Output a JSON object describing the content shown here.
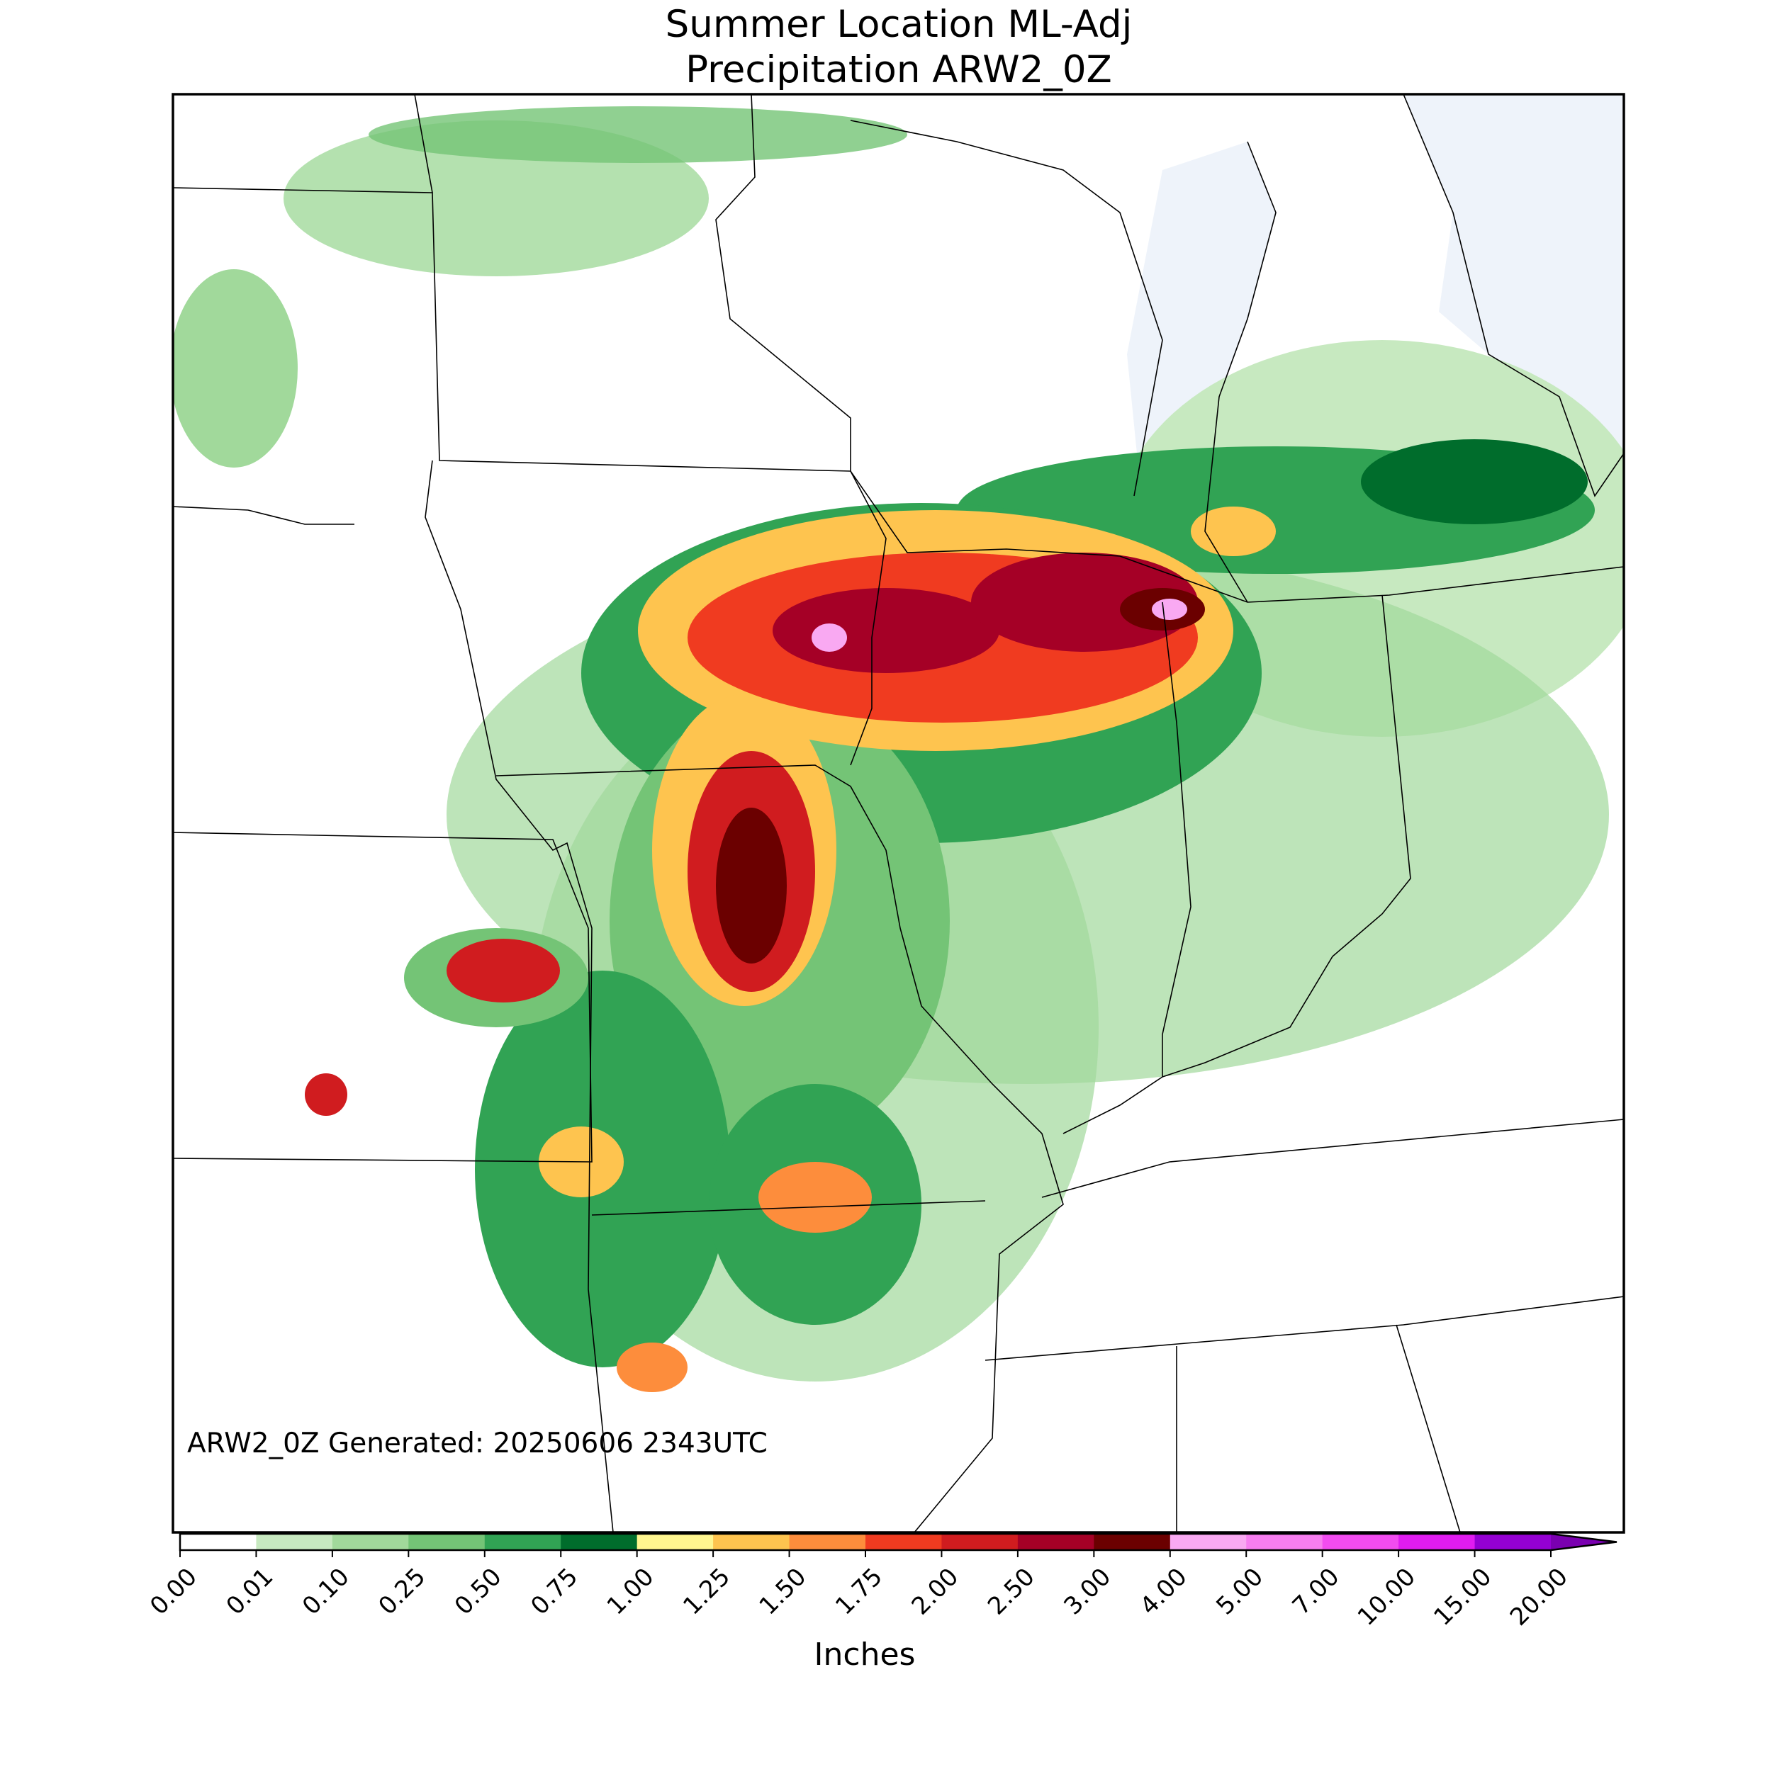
{
  "title": [
    "Summer Location ML-Adj",
    "Precipitation ARW2_0Z"
  ],
  "annotation": "ARW2_0Z Generated: 20250606 2343UTC",
  "colorbar": {
    "label": "Inches",
    "ticks": [
      "0.00",
      "0.01",
      "0.10",
      "0.25",
      "0.50",
      "0.75",
      "1.00",
      "1.25",
      "1.50",
      "1.75",
      "2.00",
      "2.50",
      "3.00",
      "4.00",
      "5.00",
      "7.00",
      "10.00",
      "15.00",
      "20.00"
    ],
    "colors": [
      "#ffffff",
      "#c7e9c0",
      "#a1d99b",
      "#74c476",
      "#31a354",
      "#006d2c",
      "#fff68f",
      "#fec44f",
      "#fd8d3c",
      "#f03b20",
      "#d01c1f",
      "#a50026",
      "#6b0000",
      "#f9a9f2",
      "#f77ef0",
      "#f24cf0",
      "#e01cf0",
      "#9400d3"
    ],
    "extend_color": "#7a00b0"
  }
}
